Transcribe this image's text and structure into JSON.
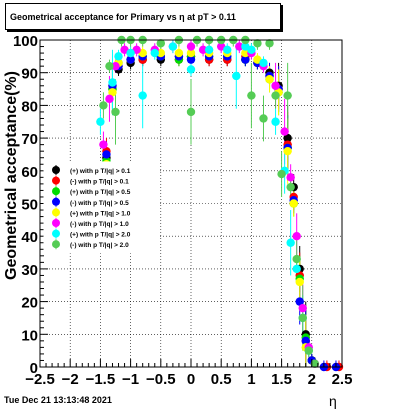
{
  "title": "Geometrical acceptance for Primary vs  η at pT > 0.11",
  "timestamp": "Tue Dec 21 13:13:48 2021",
  "chart_data": {
    "type": "scatter",
    "title": "Geometrical acceptance for Primary vs  η at pT > 0.11",
    "xlabel": "η",
    "ylabel": "Geometrical acceptance(%)",
    "xlim": [
      -2.5,
      2.5
    ],
    "ylim": [
      0,
      100
    ],
    "x_ticks": [
      "−2.5",
      "−2",
      "−1.5",
      "−1",
      "−0.5",
      "0",
      "0.5",
      "1",
      "1.5",
      "2",
      "2.5"
    ],
    "y_ticks": [
      "0",
      "10",
      "20",
      "30",
      "40",
      "50",
      "60",
      "70",
      "80",
      "90",
      "100"
    ],
    "grid": true,
    "legend_position": "center-left",
    "series": [
      {
        "name": "(+) with p T/|q| > 0.1",
        "color": "#000000",
        "x": [
          -1.4,
          -1.3,
          -1.2,
          -1.0,
          -0.8,
          -0.5,
          -0.2,
          0.0,
          0.3,
          0.6,
          0.9,
          1.1,
          1.3,
          1.45,
          1.6,
          1.7,
          1.8,
          1.9,
          2.0
        ],
        "y": [
          64,
          85,
          91,
          93,
          94,
          94,
          95,
          95,
          94,
          94,
          94,
          93,
          90,
          86,
          70,
          55,
          30,
          10,
          2
        ]
      },
      {
        "name": "(-) with p T/|q| > 0.1",
        "color": "#ff0000",
        "x": [
          -1.4,
          -1.3,
          -1.2,
          -1.0,
          -0.8,
          -0.5,
          -0.2,
          0.0,
          0.3,
          0.6,
          0.9,
          1.1,
          1.3,
          1.45,
          1.6,
          1.7,
          1.8,
          1.9,
          2.0,
          2.25,
          2.45
        ],
        "y": [
          66,
          86,
          92,
          94,
          94,
          95,
          94,
          95,
          94,
          94,
          95,
          93,
          89,
          85,
          68,
          52,
          28,
          8,
          2,
          0,
          0
        ]
      },
      {
        "name": "(+) with p T/|q| > 0.5",
        "color": "#00dd00",
        "x": [
          -1.4,
          -1.3,
          -1.2,
          -1.0,
          -0.8,
          -0.5,
          -0.2,
          0.0,
          0.3,
          0.6,
          0.9,
          1.1,
          1.3,
          1.45,
          1.6,
          1.7,
          1.8,
          1.9,
          2.0
        ],
        "y": [
          63,
          85,
          93,
          94,
          95,
          95,
          94,
          95,
          95,
          95,
          94,
          93,
          88,
          84,
          67,
          50,
          27,
          9,
          2
        ]
      },
      {
        "name": "(-) with p T/|q| > 0.5",
        "color": "#0000ff",
        "x": [
          -1.4,
          -1.3,
          -1.2,
          -1.0,
          -0.8,
          -0.5,
          -0.2,
          0.0,
          0.3,
          0.6,
          0.9,
          1.1,
          1.3,
          1.45,
          1.6,
          1.7,
          1.8,
          1.9,
          2.0,
          2.2,
          2.4
        ],
        "y": [
          65,
          86,
          92,
          94,
          95,
          95,
          95,
          94,
          95,
          95,
          94,
          93,
          89,
          85,
          67,
          51,
          20,
          8,
          2,
          0,
          0
        ]
      },
      {
        "name": "(+) with p T/|q| > 1.0",
        "color": "#ffff00",
        "x": [
          -1.4,
          -1.3,
          -1.2,
          -1.0,
          -0.8,
          -0.5,
          -0.2,
          0.0,
          0.3,
          0.6,
          0.9,
          1.1,
          1.3,
          1.45,
          1.6,
          1.7,
          1.8,
          1.9
        ],
        "y": [
          62,
          84,
          93,
          96,
          96,
          96,
          96,
          96,
          96,
          96,
          96,
          94,
          88,
          84,
          66,
          50,
          26,
          6
        ]
      },
      {
        "name": "(-) with p T/|q| > 1.0",
        "color": "#ff00ff",
        "x": [
          -1.45,
          -1.35,
          -1.25,
          -1.1,
          -0.9,
          -0.6,
          -0.3,
          0.0,
          0.2,
          0.5,
          0.8,
          1.0,
          1.2,
          1.4,
          1.55,
          1.65,
          1.75,
          1.85,
          1.95,
          2.05
        ],
        "y": [
          68,
          82,
          92,
          97,
          97,
          97,
          98,
          98,
          97,
          98,
          98,
          96,
          92,
          86,
          72,
          58,
          40,
          18,
          6,
          1
        ]
      },
      {
        "name": "(+) with p T/|q| > 2.0",
        "color": "#00ffff",
        "x": [
          -1.5,
          -1.4,
          -1.3,
          -1.2,
          -1.0,
          -0.8,
          -0.6,
          -0.3,
          0.0,
          0.3,
          0.6,
          0.75,
          0.9,
          1.0,
          1.2,
          1.4,
          1.55,
          1.65,
          1.75,
          1.85,
          1.95
        ],
        "y": [
          75,
          60,
          87,
          95,
          96,
          83,
          96,
          98,
          91,
          97,
          97,
          89,
          98,
          97,
          93,
          75,
          60,
          38,
          30,
          15,
          5
        ]
      },
      {
        "name": "(-) with p T/|q| > 2.0",
        "color": "#55cc55",
        "x": [
          -1.45,
          -1.35,
          -1.25,
          -1.15,
          -1.0,
          -0.8,
          -0.5,
          -0.2,
          0.0,
          0.1,
          0.3,
          0.5,
          0.7,
          0.9,
          1.0,
          1.1,
          1.2,
          1.3,
          1.4,
          1.5,
          1.6,
          1.65,
          1.75,
          1.85,
          1.95,
          2.05
        ],
        "y": [
          80,
          92,
          78,
          100,
          100,
          100,
          99,
          100,
          78,
          100,
          100,
          100,
          100,
          100,
          83,
          99,
          76,
          99,
          83,
          59,
          83,
          55,
          33,
          15,
          5,
          1
        ]
      }
    ]
  }
}
